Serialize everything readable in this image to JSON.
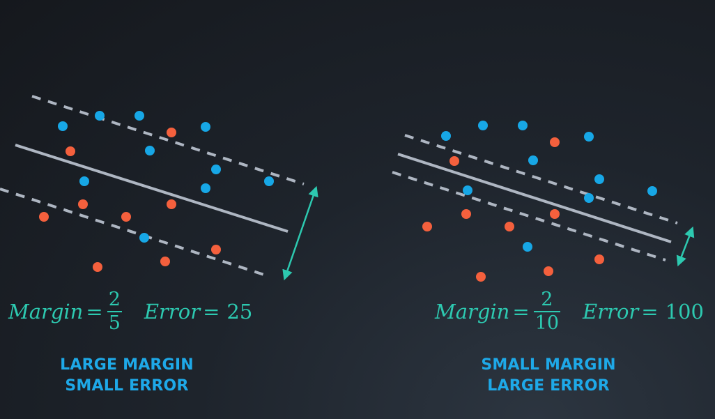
{
  "colors": {
    "blue": "#17a7e6",
    "red": "#f4603d",
    "line": "#aeb6c2",
    "arrow": "#2dc9b0",
    "formula": "#2dc9b0",
    "caption": "#1ea9e8"
  },
  "panels": [
    {
      "id": "left",
      "formula": {
        "margin_word": "Margin",
        "equals": "=",
        "numerator": "2",
        "denominator": "5",
        "error_word": "Error",
        "error_equals": "=",
        "error_value": "25"
      },
      "caption": {
        "line1": "LARGE MARGIN",
        "line2": "SMALL ERROR"
      },
      "points": {
        "blue": 11,
        "red": 10
      }
    },
    {
      "id": "right",
      "formula": {
        "margin_word": "Margin",
        "equals": "=",
        "numerator": "2",
        "denominator": "10",
        "error_word": "Error",
        "error_equals": "=",
        "error_value": "100"
      },
      "caption": {
        "line1": "SMALL MARGIN",
        "line2": "LARGE ERROR"
      },
      "points": {
        "blue": 12,
        "red": 11
      }
    }
  ]
}
